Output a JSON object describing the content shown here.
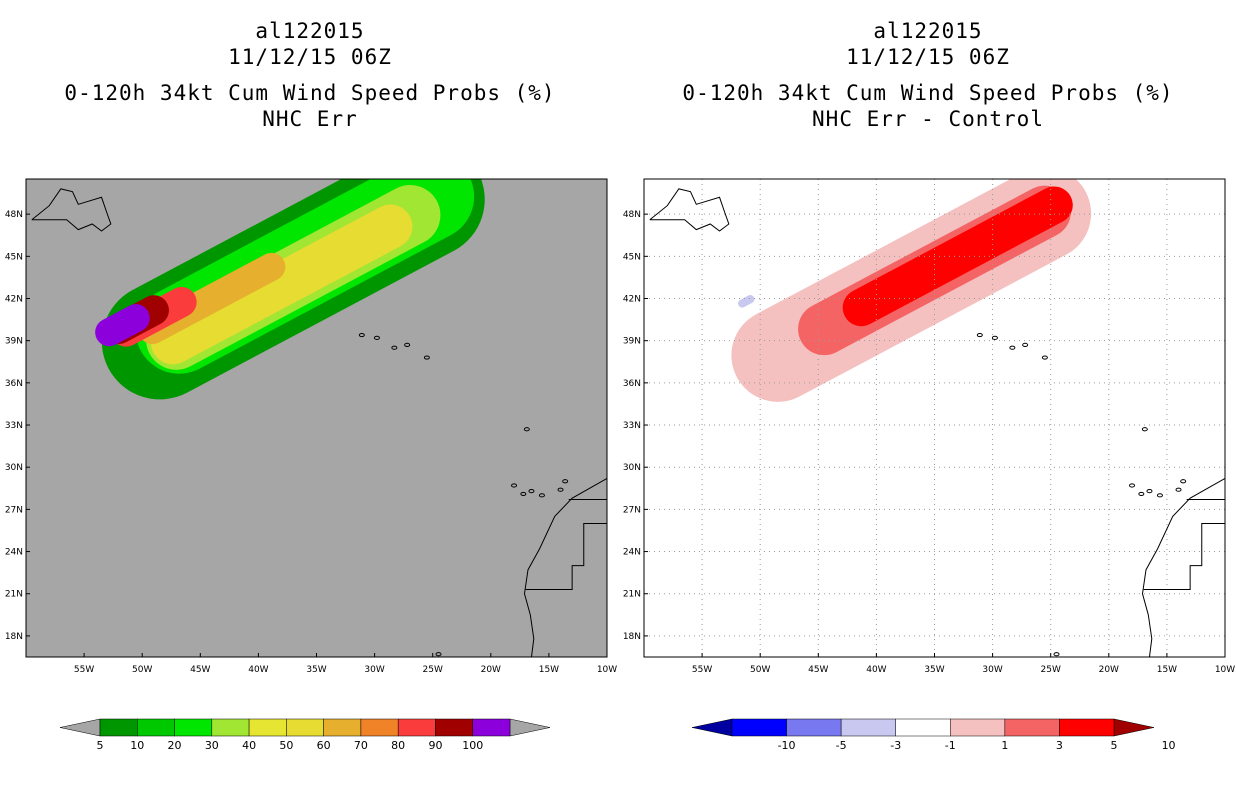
{
  "left_panel": {
    "title_line1": "al122015",
    "title_line2": "11/12/15 06Z",
    "title_line3": "0-120h 34kt Cum Wind Speed Probs (%)",
    "title_line4": "NHC Err",
    "background_color": "#a6a6a6"
  },
  "right_panel": {
    "title_line1": "al122015",
    "title_line2": "11/12/15 06Z",
    "title_line3": "0-120h 34kt Cum Wind Speed Probs (%)",
    "title_line4": "NHC Err - Control",
    "background_color": "#ffffff"
  },
  "chart_data": [
    {
      "type": "heatmap",
      "title": "0-120h 34kt Cum Wind Speed Probs (%) — NHC Err",
      "x_ticks": [
        "55W",
        "50W",
        "45W",
        "40W",
        "35W",
        "30W",
        "25W",
        "20W",
        "15W",
        "10W"
      ],
      "y_ticks": [
        "48N",
        "45N",
        "42N",
        "39N",
        "36N",
        "33N",
        "30N",
        "27N",
        "24N",
        "21N",
        "18N"
      ],
      "lon_range": [
        -60,
        -10
      ],
      "lat_range": [
        16.5,
        50.5
      ],
      "colorbar": {
        "levels": [
          "5",
          "10",
          "20",
          "30",
          "40",
          "50",
          "60",
          "70",
          "80",
          "90",
          "100"
        ],
        "colors": [
          "#009600",
          "#00c800",
          "#00e600",
          "#a0e632",
          "#e6e632",
          "#e6dc32",
          "#e6af2d",
          "#f08228",
          "#fa3c3c",
          "#a00000",
          "#8c00dc"
        ],
        "under_color": "#a6a6a6",
        "over_color": "#a6a6a6"
      },
      "contours": [
        {
          "value": "5-10",
          "color": "#009600",
          "center": [
            -37,
            44
          ],
          "length_deg": 36,
          "width_deg": 10
        },
        {
          "value": "10-20",
          "color": "#00e600",
          "center": [
            -36,
            44.5
          ],
          "length_deg": 32,
          "width_deg": 7.5
        },
        {
          "value": "20-30",
          "color": "#a0e632",
          "center": [
            -37,
            43.5
          ],
          "length_deg": 28,
          "width_deg": 5.2
        },
        {
          "value": "30-50",
          "color": "#e6dc32",
          "center": [
            -38,
            43
          ],
          "length_deg": 25,
          "width_deg": 3.8
        },
        {
          "value": "50-70",
          "color": "#e6af2d",
          "center": [
            -44,
            42
          ],
          "length_deg": 14,
          "width_deg": 2.4
        },
        {
          "value": "70-80",
          "color": "#fa3c3c",
          "center": [
            -49,
            40.7
          ],
          "length_deg": 8,
          "width_deg": 2.6
        },
        {
          "value": "80-90",
          "color": "#a00000",
          "center": [
            -50.5,
            40.5
          ],
          "length_deg": 6,
          "width_deg": 2.6
        },
        {
          "value": "90-100",
          "color": "#8c00dc",
          "center": [
            -51.7,
            40.1
          ],
          "length_deg": 5,
          "width_deg": 2.4
        }
      ]
    },
    {
      "type": "heatmap",
      "title": "0-120h 34kt Cum Wind Speed Probs (%) — NHC Err - Control",
      "x_ticks": [
        "55W",
        "50W",
        "45W",
        "40W",
        "35W",
        "30W",
        "25W",
        "20W",
        "15W",
        "10W"
      ],
      "y_ticks": [
        "48N",
        "45N",
        "42N",
        "39N",
        "36N",
        "33N",
        "30N",
        "27N",
        "24N",
        "21N",
        "18N"
      ],
      "lon_range": [
        -60,
        -10
      ],
      "lat_range": [
        16.5,
        50.5
      ],
      "colorbar": {
        "levels": [
          "-10",
          "-5",
          "-3",
          "-1",
          "1",
          "3",
          "5",
          "10"
        ],
        "colors": [
          "#0000a0",
          "#0000ff",
          "#7878f0",
          "#c8c8f0",
          "#ffffff",
          "#f5c0c0",
          "#f56464",
          "#ff0000",
          "#a00000"
        ]
      },
      "contours": [
        {
          "value": "1-3",
          "color": "#f5c0c0",
          "center": [
            -37,
            43
          ],
          "length_deg": 34,
          "width_deg": 8
        },
        {
          "value": "3-5",
          "color": "#f56464",
          "center": [
            -35,
            44
          ],
          "length_deg": 26,
          "width_deg": 4.5
        },
        {
          "value": "5-10",
          "color": "#ff0000",
          "center": [
            -33,
            45
          ],
          "length_deg": 22,
          "width_deg": 3.2
        },
        {
          "value": "-3--1",
          "color": "#c8c8f0",
          "center": [
            -51.2,
            41.8
          ],
          "length_deg": 1.5,
          "width_deg": 0.7
        }
      ]
    }
  ]
}
